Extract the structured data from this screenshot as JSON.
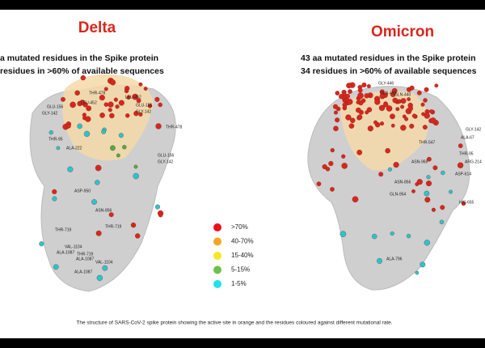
{
  "panels": [
    {
      "title": "Delta",
      "subtitle": [
        "a mutated residues in the Spike protein",
        "residues in >60% of available sequences"
      ],
      "residues": [
        "THR-478",
        "LEU-452",
        "GLU-156",
        "GLY-142",
        "LEU-452",
        "THR-478",
        "GLU-156",
        "GLY-142",
        "THR-95",
        "ALA-222",
        "GLU-156",
        "GLY-142",
        "ASP-950",
        "ASN-856",
        "THR-719",
        "THR-719",
        "VAL-1104",
        "ALA-1087",
        "THR-719",
        "ALA-1087",
        "VAL-1104",
        "ALA-1087"
      ]
    },
    {
      "title": "Omicron",
      "subtitle": [
        "43 aa mutated residues in the Spike protein",
        "34 residues in >60% of available sequences"
      ],
      "residues": [
        "GLY-446",
        "GLN-493",
        "GLN-440",
        "THR-547",
        "ASN-969",
        "ASN-856",
        "GLN-954",
        "GLY-142",
        "ALA-67",
        "THR-95",
        "ARG-214",
        "ASP-614",
        "HIS-655",
        "ALA-796"
      ]
    }
  ],
  "legend": [
    {
      "label": ">70%",
      "color": "#e8121a"
    },
    {
      "label": "40-70%",
      "color": "#f5a623"
    },
    {
      "label": "15-40%",
      "color": "#f7e81c"
    },
    {
      "label": "5-15%",
      "color": "#6cc24a"
    },
    {
      "label": "1-5%",
      "color": "#1ee3e8"
    }
  ],
  "caption": "The structure of SARS-CoV-2 spike protein showing the active site in orange and the residues coloured against different mutational rate."
}
